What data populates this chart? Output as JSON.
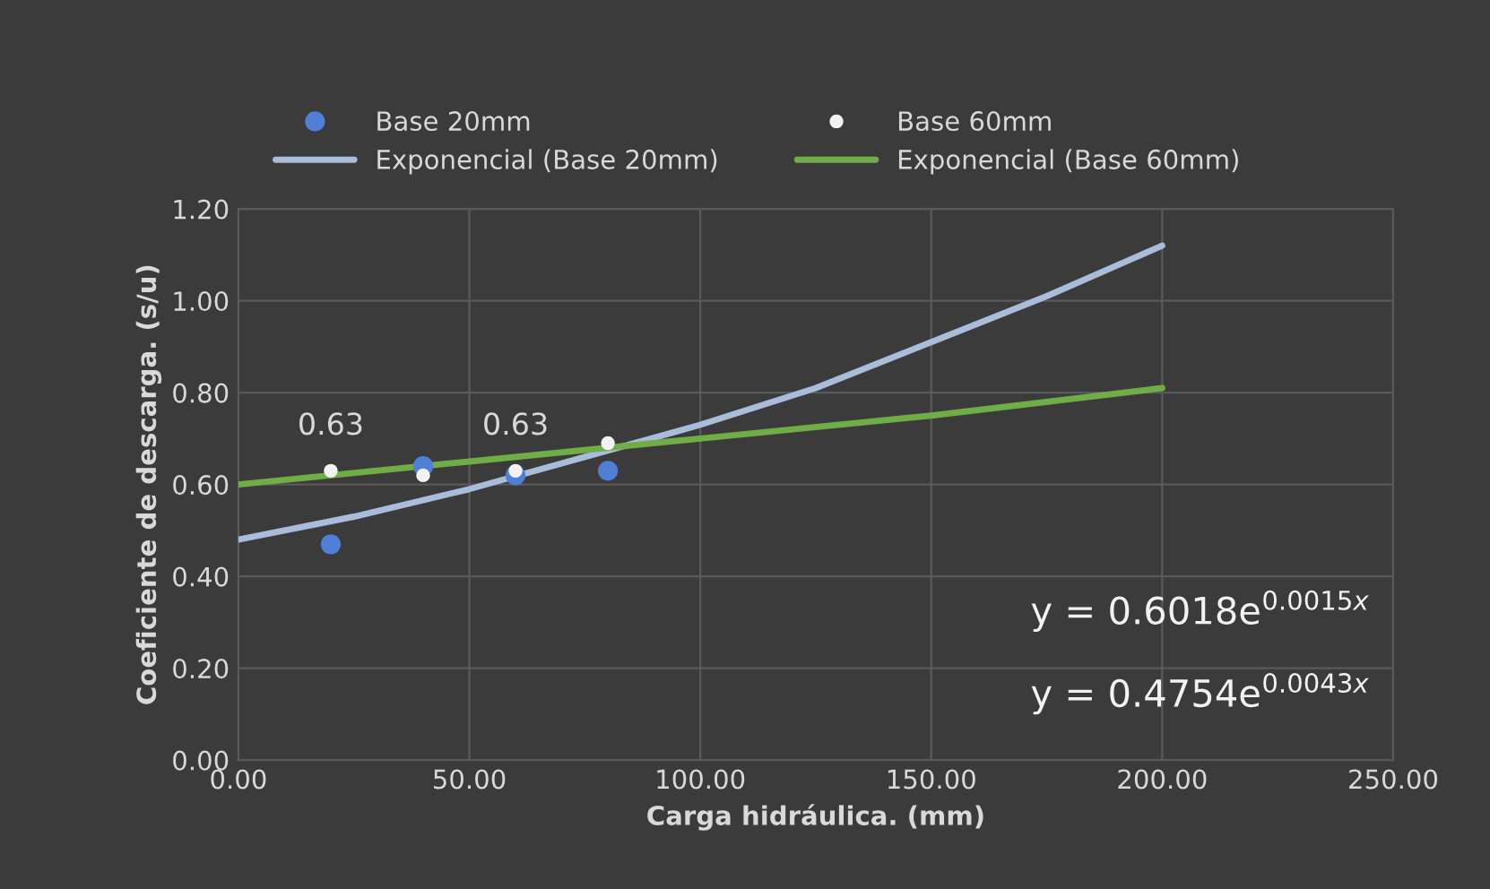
{
  "chart_data": {
    "type": "scatter",
    "xlabel": "Carga hidráulica. (mm)",
    "ylabel": "Coeficiente de descarga. (s/u)",
    "xlim": [
      0,
      250
    ],
    "xticks": [
      {
        "value": 0,
        "label": "0.00"
      },
      {
        "value": 50,
        "label": "50.00"
      },
      {
        "value": 100,
        "label": "100.00"
      },
      {
        "value": 150,
        "label": "150.00"
      },
      {
        "value": 200,
        "label": "200.00"
      },
      {
        "value": 250,
        "label": "250.00"
      }
    ],
    "ylim": [
      0,
      1.2
    ],
    "yticks": [
      {
        "value": 0,
        "label": "0.00"
      },
      {
        "value": 0.2,
        "label": "0.20"
      },
      {
        "value": 0.4,
        "label": "0.40"
      },
      {
        "value": 0.6,
        "label": "0.60"
      },
      {
        "value": 0.8,
        "label": "0.80"
      },
      {
        "value": 1.0,
        "label": "1.00"
      },
      {
        "value": 1.2,
        "label": "1.20"
      }
    ],
    "grid": true,
    "legend": "top",
    "marker": "circle",
    "series": [
      {
        "name": "Base 20mm",
        "color": "#4f7fd6",
        "x": [
          20,
          40,
          60,
          80
        ],
        "values": [
          0.47,
          0.64,
          0.62,
          0.63
        ]
      },
      {
        "name": "Base 60mm",
        "color": "#f2f2f2",
        "x": [
          20,
          40,
          60,
          80
        ],
        "values": [
          0.63,
          0.62,
          0.63,
          0.69
        ],
        "value_labels": [
          "0.63",
          null,
          "0.63",
          null
        ]
      },
      {
        "name": "Exponencial (Base 20mm)",
        "type": "line",
        "marker": "none",
        "color": "#a9bcd9",
        "x": [
          0,
          25,
          50,
          75,
          100,
          125,
          150,
          175,
          200
        ],
        "values": [
          0.48,
          0.53,
          0.59,
          0.66,
          0.73,
          0.81,
          0.91,
          1.01,
          1.12
        ]
      },
      {
        "name": "Exponencial (Base 60mm)",
        "type": "line",
        "marker": "none",
        "color": "#70ad47",
        "x": [
          0,
          50,
          100,
          150,
          200
        ],
        "values": [
          0.6,
          0.65,
          0.7,
          0.75,
          0.81
        ]
      }
    ],
    "annotations": [
      "y = 0.6018e$^{0.0015x}$",
      "y = 0.4754e$^{0.0043x}$"
    ]
  }
}
